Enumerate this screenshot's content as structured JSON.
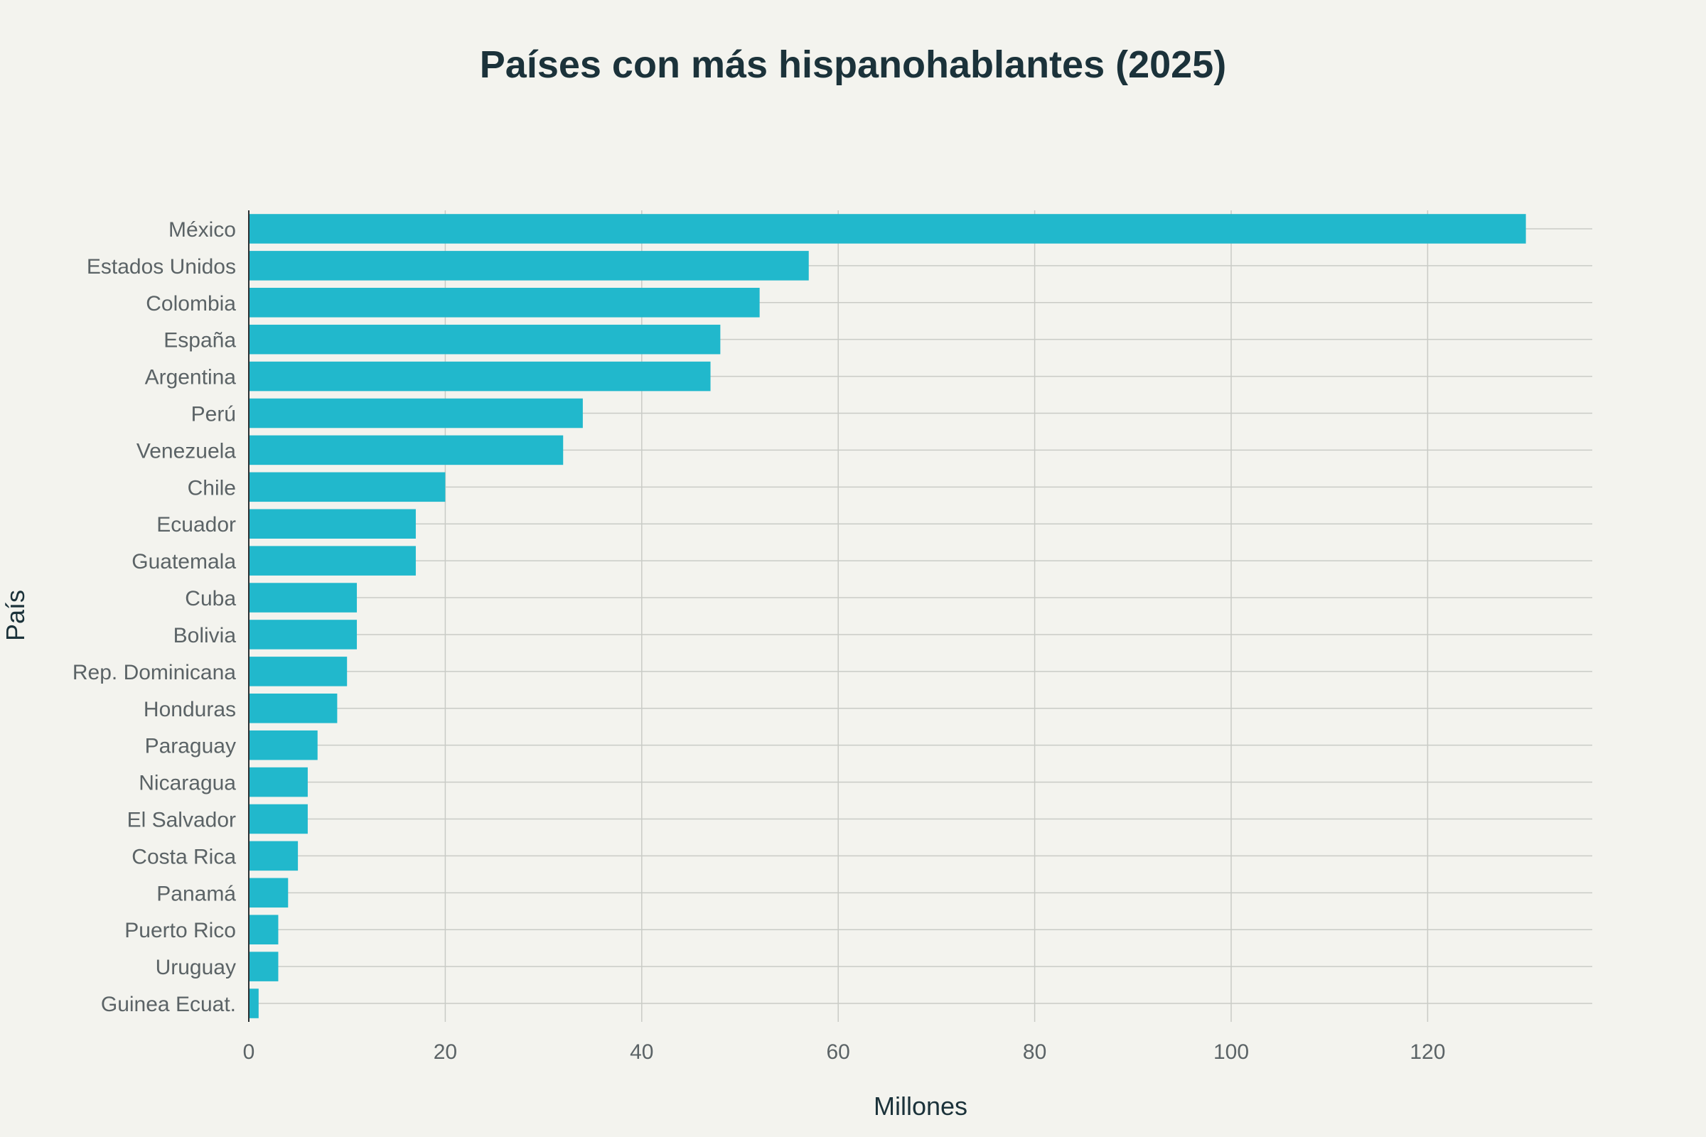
{
  "chart_data": {
    "type": "bar",
    "orientation": "horizontal",
    "title": "Países con más hispanohablantes (2025)",
    "xlabel": "Millones",
    "ylabel": "País",
    "xlim": [
      0,
      137
    ],
    "xticks": [
      0,
      20,
      40,
      60,
      80,
      100,
      120
    ],
    "grid": true,
    "bar_color": "#21b8cc",
    "categories": [
      "México",
      "Estados Unidos",
      "Colombia",
      "España",
      "Argentina",
      "Perú",
      "Venezuela",
      "Chile",
      "Ecuador",
      "Guatemala",
      "Cuba",
      "Bolivia",
      "Rep. Dominicana",
      "Honduras",
      "Paraguay",
      "Nicaragua",
      "El Salvador",
      "Costa Rica",
      "Panamá",
      "Puerto Rico",
      "Uruguay",
      "Guinea Ecuat."
    ],
    "values": [
      130,
      57,
      52,
      48,
      47,
      34,
      32,
      20,
      17,
      17,
      11,
      11,
      10,
      9,
      7,
      6,
      6,
      5,
      4,
      3,
      3,
      1
    ]
  }
}
